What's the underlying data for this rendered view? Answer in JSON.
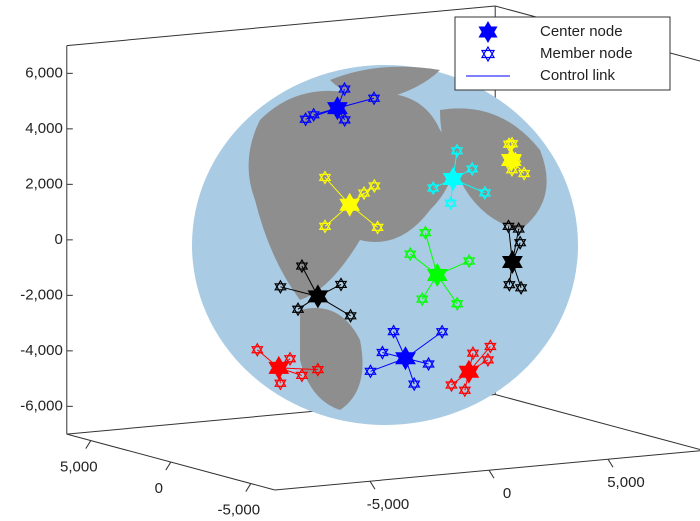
{
  "chart_data": {
    "type": "scatter3d",
    "xlim": [
      -9000,
      9000
    ],
    "ylim": [
      -6500,
      6500
    ],
    "zlim": [
      -7000,
      7000
    ],
    "xticks": [
      {
        "value": -5000,
        "label": "-5,000"
      },
      0,
      {
        "value": 5000,
        "label": "5,000"
      }
    ],
    "yticks": [
      {
        "value": -5000,
        "label": "-5,000"
      },
      0,
      {
        "value": 5000,
        "label": "5,000"
      }
    ],
    "zticks": [
      {
        "value": -6000,
        "label": "-6,000"
      },
      {
        "value": -4000,
        "label": "-4,000"
      },
      {
        "value": -2000,
        "label": "-2,000"
      },
      0,
      {
        "value": 2000,
        "label": "2,000"
      },
      {
        "value": 4000,
        "label": "4,000"
      },
      {
        "value": 6000,
        "label": "6,000"
      }
    ],
    "legend": {
      "position": "northeast",
      "color": "#0000ff",
      "entries": [
        "Center node",
        "Member node",
        "Control link"
      ]
    },
    "clusters": [
      {
        "color": "#0000ff",
        "center": [
          -2500,
          -5000,
          -3000
        ],
        "members": [
          [
            -1500,
            -5800,
            -2000
          ],
          [
            -3500,
            -4300,
            -3500
          ],
          [
            -2000,
            -4800,
            -4000
          ],
          [
            -3000,
            -5000,
            -2000
          ],
          [
            -1800,
            -5400,
            -3200
          ],
          [
            -3200,
            -4600,
            -2800
          ]
        ]
      },
      {
        "color": "#ff0000",
        "center": [
          500,
          -4500,
          -3800
        ],
        "members": [
          [
            1500,
            -4200,
            -3500
          ],
          [
            -300,
            -4600,
            -4200
          ],
          [
            800,
            -3800,
            -4600
          ],
          [
            200,
            -5200,
            -3000
          ],
          [
            1200,
            -4800,
            -2900
          ]
        ]
      },
      {
        "color": "#00ff00",
        "center": [
          -1500,
          -5500,
          0
        ],
        "members": [
          [
            -500,
            -6000,
            500
          ],
          [
            -2500,
            -5300,
            800
          ],
          [
            -1000,
            -6000,
            -1000
          ],
          [
            -2200,
            -5600,
            -800
          ],
          [
            -1800,
            -5200,
            1500
          ]
        ]
      },
      {
        "color": "#000000",
        "center": [
          3000,
          -3500,
          -200
        ],
        "members": [
          [
            3800,
            -2700,
            800
          ],
          [
            2500,
            -4000,
            1200
          ],
          [
            3500,
            -3300,
            -1200
          ],
          [
            2200,
            -4500,
            -800
          ],
          [
            4200,
            -2200,
            200
          ]
        ]
      },
      {
        "color": "#ffff00",
        "center": [
          -3500,
          -3000,
          2300
        ],
        "members": [
          [
            -2800,
            -3500,
            3000
          ],
          [
            -4200,
            -2500,
            1500
          ],
          [
            -3000,
            -4000,
            1600
          ],
          [
            -4000,
            -2200,
            3200
          ],
          [
            -3300,
            -3600,
            2800
          ]
        ]
      },
      {
        "color": "#00ffff",
        "center": [
          -500,
          -5000,
          3300
        ],
        "members": [
          [
            300,
            -5000,
            3600
          ],
          [
            -1200,
            -4800,
            3000
          ],
          [
            0,
            -4500,
            4200
          ],
          [
            -800,
            -5300,
            2500
          ],
          [
            500,
            -5500,
            2800
          ]
        ]
      },
      {
        "color": "#ff0000",
        "center": [
          -5000,
          -800,
          -3800
        ],
        "members": [
          [
            -4500,
            -1500,
            -4000
          ],
          [
            -5500,
            -200,
            -3200
          ],
          [
            -4800,
            -600,
            -4400
          ],
          [
            -5200,
            -1800,
            -3300
          ],
          [
            -4300,
            -2200,
            -3700
          ]
        ]
      },
      {
        "color": "#000000",
        "center": [
          -4500,
          -2500,
          -1000
        ],
        "members": [
          [
            -4000,
            -3200,
            -500
          ],
          [
            -5000,
            -2000,
            -1500
          ],
          [
            -4700,
            -1800,
            0
          ],
          [
            -3800,
            -3500,
            -1600
          ],
          [
            -5200,
            -1200,
            -800
          ]
        ]
      },
      {
        "color": "#ffff00",
        "center": [
          4500,
          -1200,
          3000
        ],
        "members": [
          [
            4000,
            -1800,
            3700
          ],
          [
            5000,
            -500,
            2500
          ],
          [
            4300,
            -2300,
            2700
          ],
          [
            4800,
            -800,
            3500
          ],
          [
            3800,
            -2500,
            3300
          ]
        ]
      },
      {
        "color": "#0000ff",
        "center": [
          -2000,
          0,
          5200
        ],
        "members": [
          [
            -1000,
            -800,
            5600
          ],
          [
            -3000,
            500,
            4800
          ],
          [
            -2500,
            -1200,
            5000
          ],
          [
            -1500,
            300,
            5800
          ],
          [
            -3200,
            -300,
            5100
          ]
        ]
      }
    ]
  }
}
